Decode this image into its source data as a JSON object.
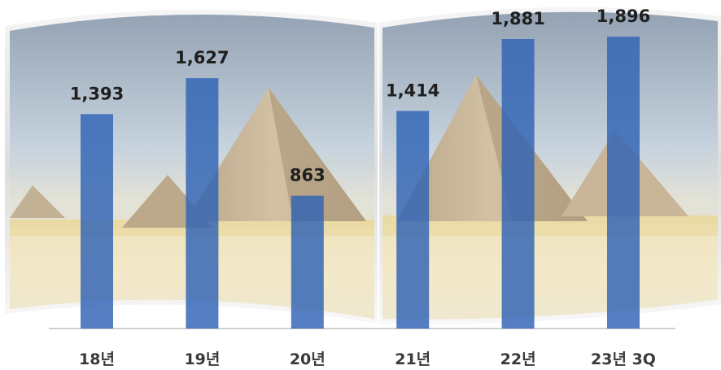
{
  "chart_data": {
    "type": "bar",
    "title": "",
    "xlabel": "",
    "ylabel": "",
    "categories": [
      "18년",
      "19년",
      "20년",
      "21년",
      "22년",
      "23년 3Q"
    ],
    "values": [
      1393,
      1627,
      863,
      1414,
      1881,
      1896
    ],
    "value_labels": [
      "1,393",
      "1,627",
      "863",
      "1,414",
      "1,881",
      "1,896"
    ],
    "ylim": [
      0,
      2050
    ],
    "grid": false,
    "legend": "none",
    "colors": {
      "bar": "#2f63b4",
      "axis": "#bfbfbf",
      "label": "#1f1f1f",
      "tick": "#3a3a3a"
    }
  }
}
